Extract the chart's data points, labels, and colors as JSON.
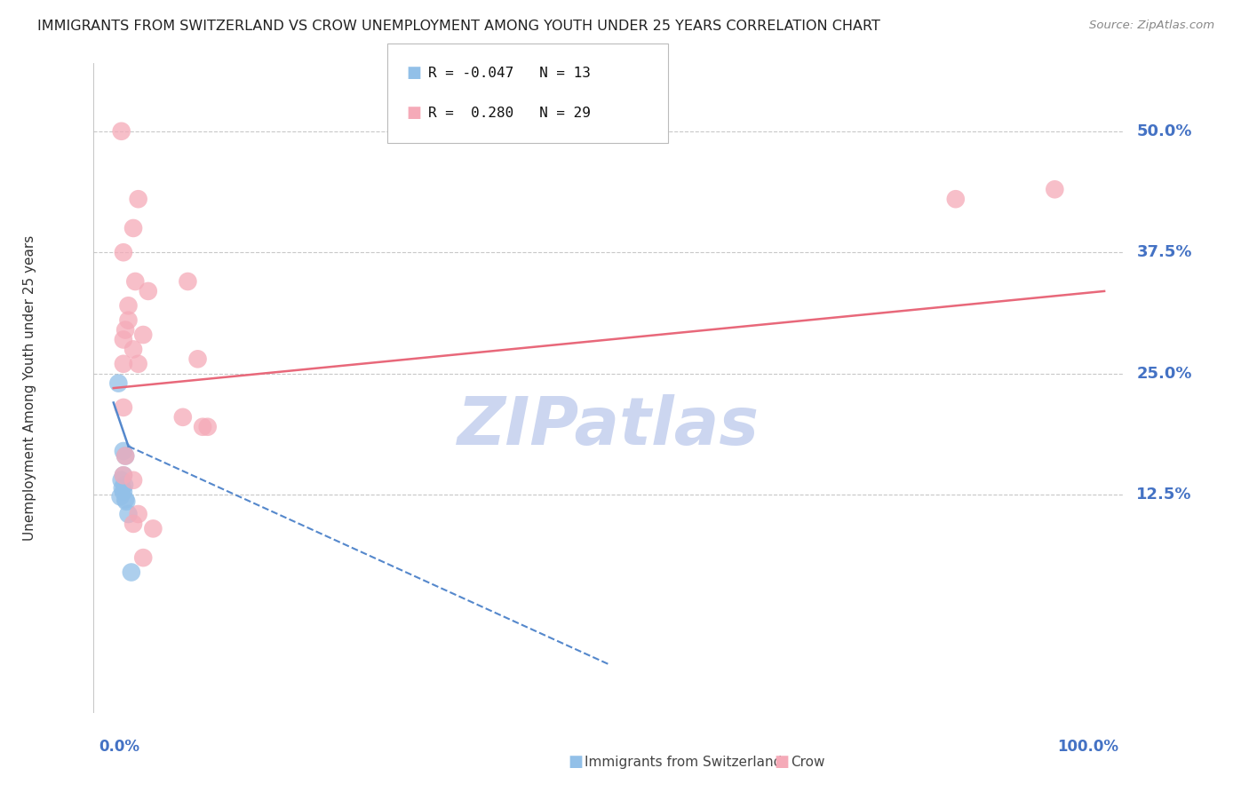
{
  "title": "IMMIGRANTS FROM SWITZERLAND VS CROW UNEMPLOYMENT AMONG YOUTH UNDER 25 YEARS CORRELATION CHART",
  "source": "Source: ZipAtlas.com",
  "ylabel": "Unemployment Among Youth under 25 years",
  "legend_blue_R": "-0.047",
  "legend_blue_N": "13",
  "legend_pink_R": "0.280",
  "legend_pink_N": "29",
  "watermark": "ZIPatlas",
  "blue_points": [
    [
      0.5,
      24.0
    ],
    [
      1.0,
      17.0
    ],
    [
      1.2,
      16.5
    ],
    [
      1.0,
      14.5
    ],
    [
      0.8,
      14.0
    ],
    [
      1.1,
      13.5
    ],
    [
      0.9,
      13.2
    ],
    [
      1.0,
      12.8
    ],
    [
      0.7,
      12.3
    ],
    [
      1.2,
      12.0
    ],
    [
      1.3,
      11.8
    ],
    [
      1.5,
      10.5
    ],
    [
      1.8,
      4.5
    ]
  ],
  "pink_points": [
    [
      0.8,
      50.0
    ],
    [
      2.5,
      43.0
    ],
    [
      2.0,
      40.0
    ],
    [
      2.2,
      34.5
    ],
    [
      3.5,
      33.5
    ],
    [
      3.0,
      29.0
    ],
    [
      1.0,
      37.5
    ],
    [
      1.5,
      30.5
    ],
    [
      1.2,
      29.5
    ],
    [
      1.0,
      28.5
    ],
    [
      1.0,
      26.0
    ],
    [
      2.0,
      27.5
    ],
    [
      2.5,
      26.0
    ],
    [
      1.5,
      32.0
    ],
    [
      1.0,
      21.5
    ],
    [
      1.2,
      16.5
    ],
    [
      1.0,
      14.5
    ],
    [
      2.0,
      14.0
    ],
    [
      2.5,
      10.5
    ],
    [
      2.0,
      9.5
    ],
    [
      4.0,
      9.0
    ],
    [
      3.0,
      6.0
    ],
    [
      7.0,
      20.5
    ],
    [
      7.5,
      34.5
    ],
    [
      8.5,
      26.5
    ],
    [
      9.0,
      19.5
    ],
    [
      9.5,
      19.5
    ],
    [
      85.0,
      43.0
    ],
    [
      95.0,
      44.0
    ]
  ],
  "blue_solid_line": {
    "x": [
      0.0,
      1.5
    ],
    "y": [
      22.0,
      17.5
    ]
  },
  "blue_dash_line": {
    "x": [
      1.5,
      50.0
    ],
    "y": [
      17.5,
      -5.0
    ]
  },
  "pink_solid_line": {
    "x": [
      0.0,
      100.0
    ],
    "y": [
      23.5,
      33.5
    ]
  },
  "blue_color": "#92c0e8",
  "pink_color": "#f5aab8",
  "blue_line_color": "#5588cc",
  "pink_line_color": "#e8687a",
  "background_color": "#ffffff",
  "grid_color": "#c8c8c8",
  "title_color": "#222222",
  "axis_label_color": "#4472c4",
  "watermark_color": "#ccd6f0",
  "xlim": [
    -2.0,
    102.0
  ],
  "ylim": [
    -10.0,
    57.0
  ],
  "yticks": [
    0.0,
    12.5,
    25.0,
    37.5,
    50.0
  ],
  "ytick_labels": [
    "",
    "12.5%",
    "25.0%",
    "37.5%",
    "50.0%"
  ]
}
